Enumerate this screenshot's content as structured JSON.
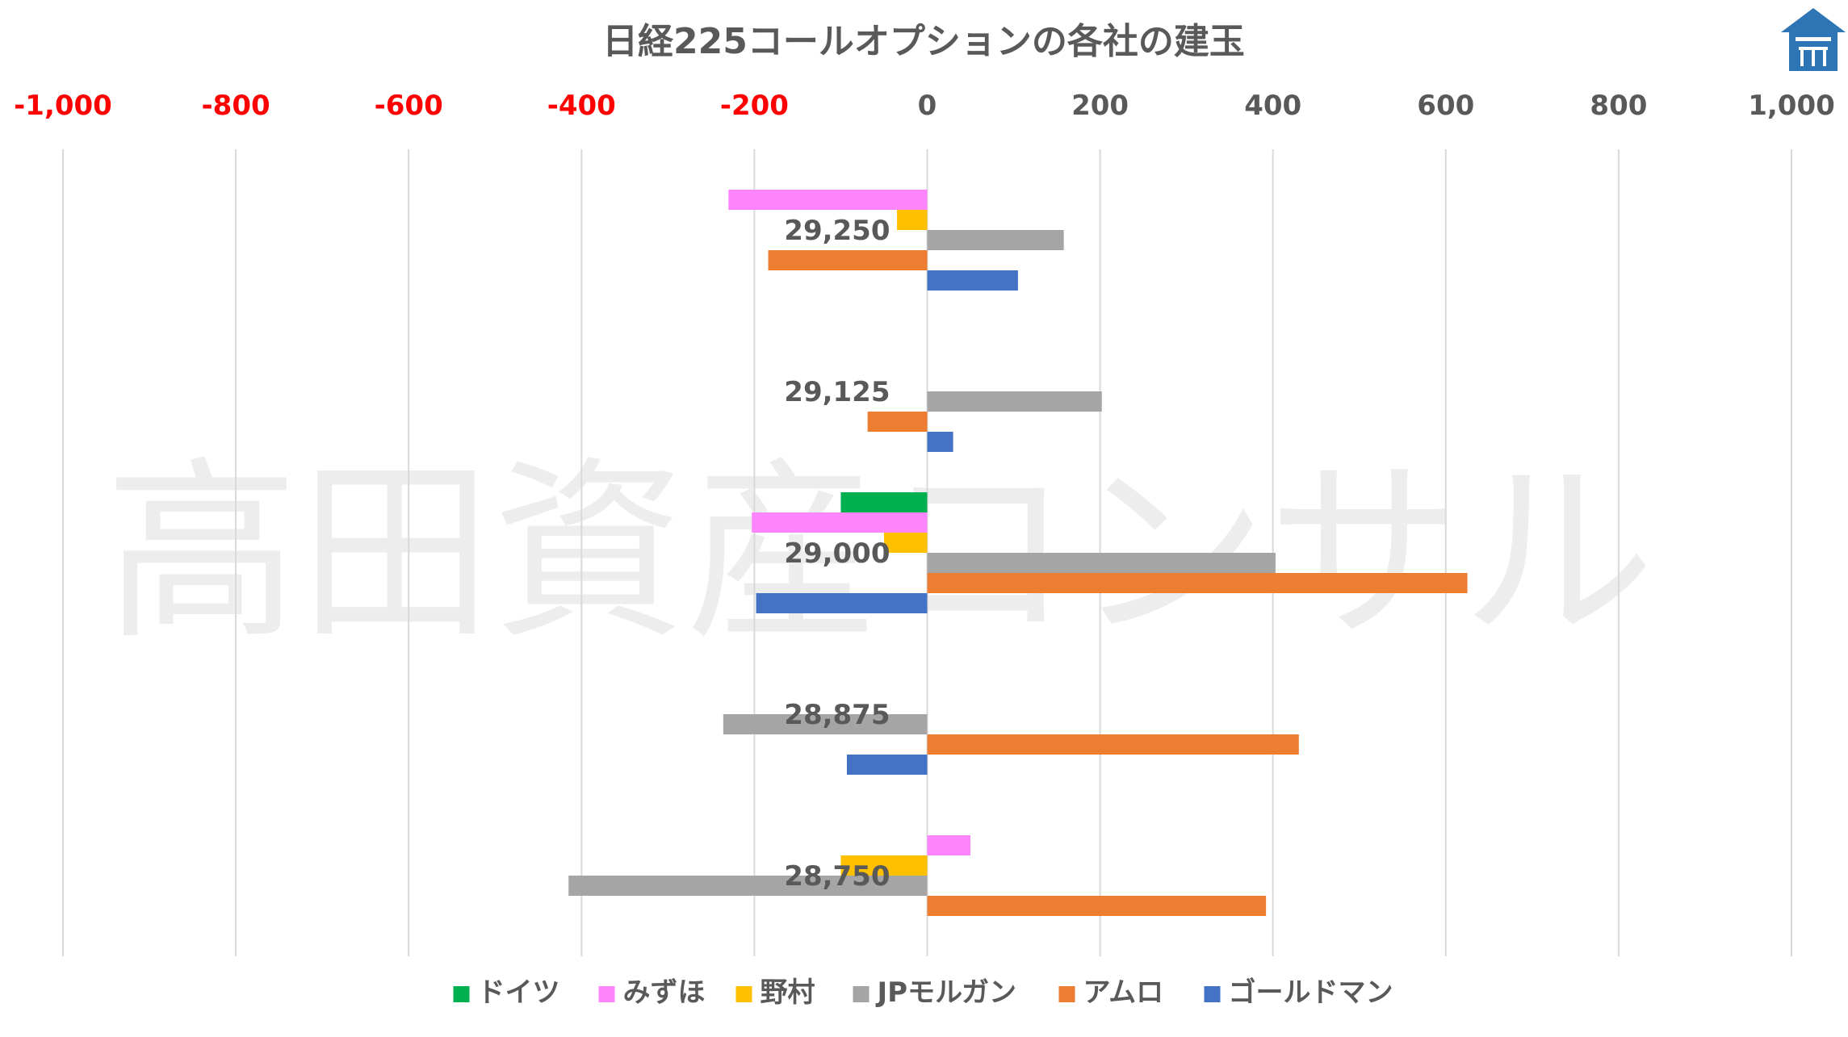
{
  "chart_data": {
    "type": "bar",
    "orientation": "horizontal",
    "title": "日経225コールオプションの各社の建玉",
    "xlim": [
      -1000,
      1000
    ],
    "x_ticks": [
      "-1,000",
      "-800",
      "-600",
      "-400",
      "-200",
      "0",
      "200",
      "400",
      "600",
      "800",
      "1,000"
    ],
    "x_tick_values": [
      -1000,
      -800,
      -600,
      -400,
      -200,
      0,
      200,
      400,
      600,
      800,
      1000
    ],
    "negative_tick_color": "#ff0000",
    "positive_tick_color": "#595959",
    "grid": "vertical",
    "legend_position": "bottom",
    "categories": [
      "29,250",
      "29,125",
      "29,000",
      "28,875",
      "28,750"
    ],
    "series": [
      {
        "name": "ドイツ",
        "color": "#00b050",
        "values": [
          0,
          0,
          -100,
          0,
          0
        ]
      },
      {
        "name": "みずほ",
        "color": "#ff85ff",
        "values": [
          -230,
          0,
          -203,
          0,
          50
        ]
      },
      {
        "name": "野村",
        "color": "#ffc000",
        "values": [
          -35,
          0,
          -50,
          0,
          -100
        ]
      },
      {
        "name": "JPモルガン",
        "color": "#a5a5a5",
        "values": [
          158,
          202,
          403,
          -236,
          -415
        ]
      },
      {
        "name": "アムロ",
        "color": "#ed7d31",
        "values": [
          -184,
          -69,
          625,
          430,
          392
        ]
      },
      {
        "name": "ゴールドマン",
        "color": "#4472c4",
        "values": [
          105,
          30,
          -198,
          -93,
          0
        ]
      }
    ],
    "watermark": "高田資産コンサル"
  },
  "colors": {
    "grid": "#d9d9d9",
    "logo": "#2e75b6",
    "text": "#595959"
  },
  "logo": {
    "icon": "house-logo-icon"
  }
}
